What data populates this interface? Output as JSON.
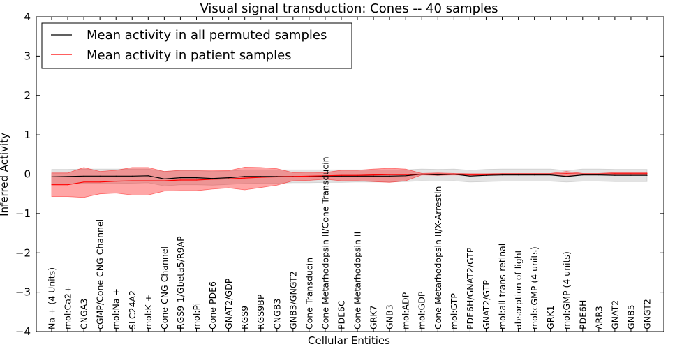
{
  "chart_data": {
    "type": "line",
    "title": "Visual signal transduction: Cones -- 40 samples",
    "xlabel": "Cellular Entities",
    "ylabel": "Inferred Activity",
    "ylim": [
      -4,
      4
    ],
    "yticks": [
      -4,
      -3,
      -2,
      -1,
      0,
      1,
      2,
      3,
      4
    ],
    "ytick_labels": [
      "−4",
      "−3",
      "−2",
      "−1",
      "0",
      "1",
      "2",
      "3",
      "4"
    ],
    "legend_position": "upper-left",
    "categories": [
      "Na + (4 Units)",
      "mol:Ca2+",
      "CNGA3",
      "cGMP/Cone CNG Channel",
      "mol:Na +",
      "SLC24A2",
      "mol:K +",
      "Cone CNG Channel",
      "RGS9-1/Gbeta5/R9AP",
      "mol:Pi",
      "Cone PDE6",
      "GNAT2/GDP",
      "RGS9",
      "RGS9BP",
      "CNGB3",
      "GNB3/GNGT2",
      "Cone Transducin",
      "Cone Metarhodopsin II/Cone Transducin",
      "PDE6C",
      "Cone Metarhodopsin II",
      "GRK7",
      "GNB3",
      "mol:ADP",
      "mol:GDP",
      "Cone Metarhodopsin II/X-Arrestin",
      "mol:GTP",
      "PDE6H/GNAT2/GTP",
      "GNAT2/GTP",
      "mol:all-trans-retinal",
      "absorption of light",
      "mol:cGMP (4 units)",
      "GRK1",
      "mol:GMP (4 units)",
      "PDE6H",
      "ARR3",
      "GNAT2",
      "GNB5",
      "GNGT2"
    ],
    "series": [
      {
        "name": "Mean activity in all permuted samples",
        "color": "#000000",
        "band_color": "#b0b0b0",
        "values": [
          -0.07,
          -0.06,
          -0.05,
          -0.05,
          -0.05,
          -0.05,
          -0.04,
          -0.12,
          -0.09,
          -0.09,
          -0.11,
          -0.09,
          -0.06,
          -0.06,
          -0.06,
          -0.06,
          -0.06,
          -0.05,
          -0.05,
          -0.05,
          -0.05,
          -0.05,
          -0.04,
          0.0,
          -0.02,
          0.0,
          -0.05,
          -0.03,
          -0.02,
          -0.02,
          -0.02,
          -0.02,
          -0.06,
          -0.02,
          -0.02,
          -0.03,
          -0.03,
          -0.03
        ],
        "lower": [
          -0.26,
          -0.25,
          -0.24,
          -0.24,
          -0.24,
          -0.23,
          -0.22,
          -0.3,
          -0.27,
          -0.27,
          -0.28,
          -0.26,
          -0.24,
          -0.23,
          -0.23,
          -0.22,
          -0.22,
          -0.21,
          -0.21,
          -0.2,
          -0.2,
          -0.2,
          -0.19,
          -0.17,
          -0.18,
          -0.17,
          -0.2,
          -0.19,
          -0.18,
          -0.18,
          -0.18,
          -0.18,
          -0.2,
          -0.18,
          -0.18,
          -0.19,
          -0.19,
          -0.19
        ],
        "upper": [
          0.12,
          0.12,
          0.13,
          0.13,
          0.13,
          0.13,
          0.13,
          0.07,
          0.09,
          0.09,
          0.07,
          0.08,
          0.11,
          0.11,
          0.11,
          0.11,
          0.11,
          0.11,
          0.11,
          0.11,
          0.11,
          0.11,
          0.11,
          0.13,
          0.12,
          0.13,
          0.1,
          0.12,
          0.13,
          0.13,
          0.13,
          0.13,
          0.09,
          0.13,
          0.13,
          0.12,
          0.12,
          0.12
        ]
      },
      {
        "name": "Mean activity in patient samples",
        "color": "#ff0000",
        "band_color": "#ff0000",
        "values": [
          -0.27,
          -0.27,
          -0.2,
          -0.2,
          -0.18,
          -0.17,
          -0.17,
          -0.17,
          -0.15,
          -0.15,
          -0.13,
          -0.12,
          -0.1,
          -0.08,
          -0.07,
          -0.06,
          -0.05,
          -0.04,
          -0.03,
          -0.03,
          -0.02,
          -0.01,
          -0.01,
          0.0,
          0.0,
          0.0,
          -0.01,
          -0.01,
          0.0,
          0.0,
          0.0,
          0.0,
          0.01,
          0.0,
          0.0,
          0.01,
          0.01,
          0.01
        ],
        "lower": [
          -0.57,
          -0.57,
          -0.59,
          -0.5,
          -0.48,
          -0.53,
          -0.53,
          -0.43,
          -0.42,
          -0.42,
          -0.38,
          -0.35,
          -0.4,
          -0.34,
          -0.28,
          -0.17,
          -0.16,
          -0.13,
          -0.17,
          -0.17,
          -0.19,
          -0.21,
          -0.17,
          -0.02,
          -0.03,
          -0.02,
          -0.03,
          -0.03,
          -0.02,
          -0.02,
          -0.02,
          -0.02,
          -0.05,
          -0.02,
          -0.02,
          -0.02,
          -0.02,
          -0.02
        ],
        "upper": [
          0.03,
          0.03,
          0.17,
          0.07,
          0.1,
          0.17,
          0.17,
          0.07,
          0.1,
          0.1,
          0.1,
          0.09,
          0.18,
          0.17,
          0.14,
          0.04,
          0.05,
          0.04,
          0.1,
          0.1,
          0.13,
          0.15,
          0.13,
          0.02,
          0.03,
          0.02,
          0.01,
          0.01,
          0.02,
          0.02,
          0.02,
          0.02,
          0.07,
          0.02,
          0.02,
          0.04,
          0.04,
          0.04
        ]
      }
    ]
  }
}
